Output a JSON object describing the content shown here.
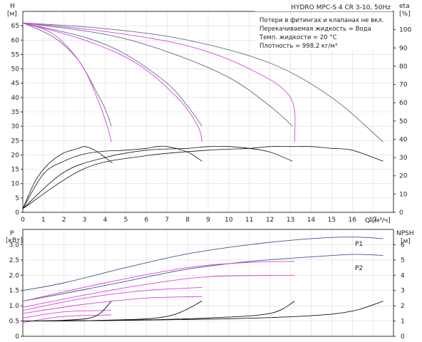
{
  "chart_data": [
    {
      "type": "line",
      "panel": "top",
      "title": "HYDRO MPC-S 4 CR 3-10, 50Hz",
      "xlabel": "Q [м³/ч]",
      "ylabel": "H",
      "ylabel_unit": "[м]",
      "y2label": "eta",
      "y2label_unit": "[%]",
      "xlim": [
        0,
        18
      ],
      "ylim": [
        0,
        70
      ],
      "y2lim": [
        0,
        110
      ],
      "x_ticks": [
        "0",
        "1",
        "2",
        "3",
        "4",
        "5",
        "6",
        "7",
        "8",
        "9",
        "10",
        "11",
        "12",
        "13",
        "14",
        "15",
        "16",
        "17"
      ],
      "y_ticks": [
        "0",
        "5",
        "10",
        "15",
        "20",
        "25",
        "30",
        "35",
        "40",
        "45",
        "50",
        "55",
        "60",
        "65"
      ],
      "y2_ticks": [
        "0",
        "10",
        "20",
        "30",
        "40",
        "50",
        "60",
        "70",
        "80",
        "90",
        "100"
      ],
      "grid": true,
      "notes": [
        "Потери в фитингах и клапанах не вкл.",
        "Перекачиваемая жидкость = Вода",
        "Темп. жидкости = 20 °C",
        "Плотность = 998.2 кг/м³"
      ],
      "colors": {
        "pump_curve": "#5a6e8c",
        "system_curve": "#e040e0",
        "eff_curve": "#111111"
      },
      "series": [
        {
          "kind": "head",
          "pumps": 4,
          "points": [
            [
              0,
              66
            ],
            [
              4,
              64
            ],
            [
              8,
              60
            ],
            [
              12,
              52
            ],
            [
              15,
              40
            ],
            [
              17.5,
              24.5
            ]
          ]
        },
        {
          "kind": "head",
          "pumps": 3,
          "points": [
            [
              0,
              66
            ],
            [
              4,
              62
            ],
            [
              7,
              56
            ],
            [
              10,
              47
            ],
            [
              12,
              37
            ],
            [
              13.1,
              30
            ]
          ]
        },
        {
          "kind": "head",
          "pumps": 2,
          "points": [
            [
              0,
              66
            ],
            [
              3,
              61
            ],
            [
              5,
              55
            ],
            [
              7,
              45
            ],
            [
              8,
              37
            ],
            [
              8.7,
              30
            ]
          ]
        },
        {
          "kind": "head",
          "pumps": 1,
          "points": [
            [
              0,
              66
            ],
            [
              1.5,
              61
            ],
            [
              2.7,
              53
            ],
            [
              3.5,
              43
            ],
            [
              4,
              36
            ],
            [
              4.3,
              30
            ]
          ]
        },
        {
          "kind": "system",
          "points": [
            [
              0,
              66
            ],
            [
              4,
              63
            ],
            [
              8,
              58
            ],
            [
              11,
              50
            ],
            [
              13,
              40
            ],
            [
              13.2,
              24.5
            ]
          ]
        },
        {
          "kind": "system",
          "points": [
            [
              0,
              66
            ],
            [
              3,
              60
            ],
            [
              5.5,
              52
            ],
            [
              7.5,
              40
            ],
            [
              8.5,
              30
            ],
            [
              8.7,
              24.5
            ]
          ]
        },
        {
          "kind": "system",
          "points": [
            [
              0,
              66
            ],
            [
              1.5,
              62
            ],
            [
              2.8,
              52
            ],
            [
              3.6,
              40
            ],
            [
              4.1,
              30
            ],
            [
              4.3,
              24.5
            ]
          ]
        },
        {
          "kind": "efficiency",
          "points": [
            [
              0,
              2
            ],
            [
              0.6,
              17
            ],
            [
              1.2,
              26
            ],
            [
              1.9,
              32
            ],
            [
              2.4,
              34
            ],
            [
              2.7,
              35
            ],
            [
              3,
              36
            ],
            [
              3.5,
              34
            ],
            [
              4,
              30
            ],
            [
              4.35,
              27
            ]
          ]
        },
        {
          "kind": "efficiency",
          "points": [
            [
              0,
              2
            ],
            [
              1,
              21
            ],
            [
              2,
              28
            ],
            [
              3,
              32
            ],
            [
              4,
              33.5
            ],
            [
              5,
              34
            ],
            [
              6,
              35
            ],
            [
              6.5,
              36
            ],
            [
              7,
              36
            ],
            [
              8,
              33
            ],
            [
              8.7,
              28
            ]
          ]
        },
        {
          "kind": "efficiency",
          "points": [
            [
              0,
              2
            ],
            [
              2,
              22
            ],
            [
              4,
              30
            ],
            [
              6,
              34
            ],
            [
              8,
              35
            ],
            [
              9,
              36
            ],
            [
              10,
              36
            ],
            [
              11,
              35
            ],
            [
              12,
              33
            ],
            [
              13.1,
              28
            ]
          ]
        },
        {
          "kind": "efficiency",
          "points": [
            [
              0,
              2
            ],
            [
              3,
              24
            ],
            [
              6,
              31
            ],
            [
              9,
              34
            ],
            [
              11,
              35
            ],
            [
              12,
              36
            ],
            [
              13,
              36
            ],
            [
              14,
              36
            ],
            [
              15,
              35
            ],
            [
              16,
              34
            ],
            [
              17.5,
              28
            ]
          ]
        }
      ]
    },
    {
      "type": "line",
      "panel": "bottom",
      "xlim": [
        0,
        18
      ],
      "ylabel": "P",
      "ylabel_unit": "[кВт]",
      "y2label": "NPSH",
      "y2label_unit": "[м]",
      "ylim": [
        0,
        3.5
      ],
      "y2lim": [
        0,
        7
      ],
      "y_ticks": [
        "0",
        "0.5",
        "1.0",
        "1.5",
        "2.0",
        "2.5",
        "3.0"
      ],
      "y2_ticks": [
        "0",
        "1",
        "2",
        "3",
        "4",
        "5",
        "6"
      ],
      "grid": true,
      "series_labels": [
        "P1",
        "P2"
      ],
      "series": [
        {
          "name": "P1",
          "kind": "power",
          "points": [
            [
              0,
              1.5
            ],
            [
              2,
              1.75
            ],
            [
              5,
              2.25
            ],
            [
              8,
              2.7
            ],
            [
              11,
              3.0
            ],
            [
              14,
              3.2
            ],
            [
              16,
              3.25
            ],
            [
              17.5,
              3.2
            ]
          ]
        },
        {
          "name": "P2",
          "kind": "power",
          "points": [
            [
              0,
              1.15
            ],
            [
              2,
              1.4
            ],
            [
              5,
              1.8
            ],
            [
              8,
              2.2
            ],
            [
              11,
              2.45
            ],
            [
              14,
              2.6
            ],
            [
              16,
              2.68
            ],
            [
              17.5,
              2.65
            ]
          ]
        },
        {
          "kind": "power_system",
          "points": [
            [
              0,
              1.15
            ],
            [
              4,
              1.75
            ],
            [
              8,
              2.25
            ],
            [
              11,
              2.42
            ],
            [
              13.2,
              2.45
            ]
          ]
        },
        {
          "kind": "power_system",
          "points": [
            [
              0,
              0.95
            ],
            [
              3,
              1.35
            ],
            [
              6,
              1.7
            ],
            [
              9,
              1.95
            ],
            [
              13.2,
              2.0
            ]
          ]
        },
        {
          "kind": "power_system",
          "points": [
            [
              0,
              0.85
            ],
            [
              3,
              1.25
            ],
            [
              6,
              1.5
            ],
            [
              8.7,
              1.6
            ]
          ]
        },
        {
          "kind": "power_system",
          "points": [
            [
              0,
              0.75
            ],
            [
              3,
              1.05
            ],
            [
              6,
              1.25
            ],
            [
              8.7,
              1.3
            ]
          ]
        },
        {
          "kind": "power_system",
          "points": [
            [
              0,
              0.6
            ],
            [
              2,
              0.8
            ],
            [
              4.3,
              0.85
            ]
          ]
        },
        {
          "kind": "power_system",
          "points": [
            [
              0,
              0.45
            ],
            [
              2,
              0.65
            ],
            [
              4.3,
              0.7
            ]
          ]
        },
        {
          "kind": "npsh",
          "points": [
            [
              0,
              1.0
            ],
            [
              5,
              1.05
            ],
            [
              10,
              1.15
            ],
            [
              14,
              1.35
            ],
            [
              16,
              1.65
            ],
            [
              17.5,
              2.3
            ]
          ]
        },
        {
          "kind": "npsh",
          "points": [
            [
              0,
              1.0
            ],
            [
              5,
              1.05
            ],
            [
              9,
              1.2
            ],
            [
              12,
              1.5
            ],
            [
              13.2,
              2.3
            ]
          ]
        },
        {
          "kind": "npsh",
          "points": [
            [
              0,
              1.0
            ],
            [
              4,
              1.05
            ],
            [
              7,
              1.3
            ],
            [
              8.7,
              2.3
            ]
          ]
        },
        {
          "kind": "npsh",
          "points": [
            [
              0,
              1.0
            ],
            [
              2,
              1.05
            ],
            [
              3.5,
              1.3
            ],
            [
              4.3,
              2.3
            ]
          ]
        }
      ]
    }
  ]
}
